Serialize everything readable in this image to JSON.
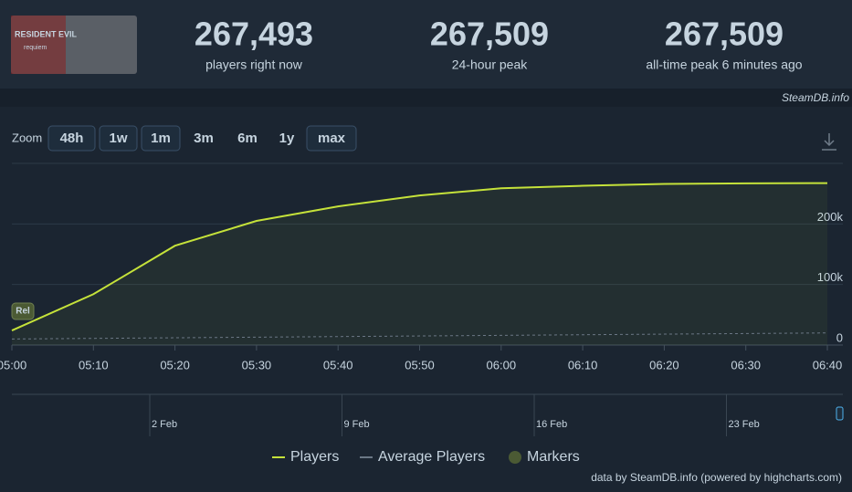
{
  "header": {
    "game_logo": [
      "RESIDENT EVIL",
      "requiem"
    ],
    "stats": [
      {
        "value": "267,493",
        "label": "players right now"
      },
      {
        "value": "267,509",
        "label": "24-hour peak"
      },
      {
        "value": "267,509",
        "label": "all-time peak 6 minutes ago"
      }
    ],
    "source": "SteamDB.info"
  },
  "zoom": {
    "label": "Zoom",
    "buttons": [
      {
        "label": "48h",
        "enabled": true
      },
      {
        "label": "1w",
        "enabled": true
      },
      {
        "label": "1m",
        "enabled": true
      },
      {
        "label": "3m",
        "enabled": false
      },
      {
        "label": "6m",
        "enabled": false
      },
      {
        "label": "1y",
        "enabled": false
      },
      {
        "label": "max",
        "enabled": true
      }
    ]
  },
  "chart_data": {
    "type": "line",
    "categories": [
      "05:00",
      "05:10",
      "05:20",
      "05:30",
      "05:40",
      "05:50",
      "06:00",
      "06:10",
      "06:20",
      "06:30",
      "06:40"
    ],
    "series": [
      {
        "name": "Players",
        "color": "#c5e23a",
        "values": [
          24000,
          84000,
          164000,
          205000,
          229000,
          247000,
          259000,
          263000,
          266000,
          267000,
          267493
        ]
      },
      {
        "name": "Average Players",
        "color": "#6b7785",
        "dashed": true,
        "values": [
          10000,
          11000,
          12000,
          13000,
          14000,
          15000,
          16000,
          17000,
          18000,
          19000,
          20000
        ]
      }
    ],
    "markers": {
      "name": "Markers",
      "color": "#4b5a34",
      "points": [
        {
          "x": "05:00",
          "label": "Rel"
        }
      ]
    },
    "ylim": [
      0,
      300000
    ],
    "yticks": [
      0,
      {
        "value": 100000,
        "label": "100k"
      },
      {
        "value": 200000,
        "label": "200k"
      }
    ],
    "grid": true,
    "navigator_labels": [
      "2 Feb",
      "9 Feb",
      "16 Feb",
      "23 Feb"
    ],
    "credit": "data by SteamDB.info (powered by highcharts.com)"
  }
}
